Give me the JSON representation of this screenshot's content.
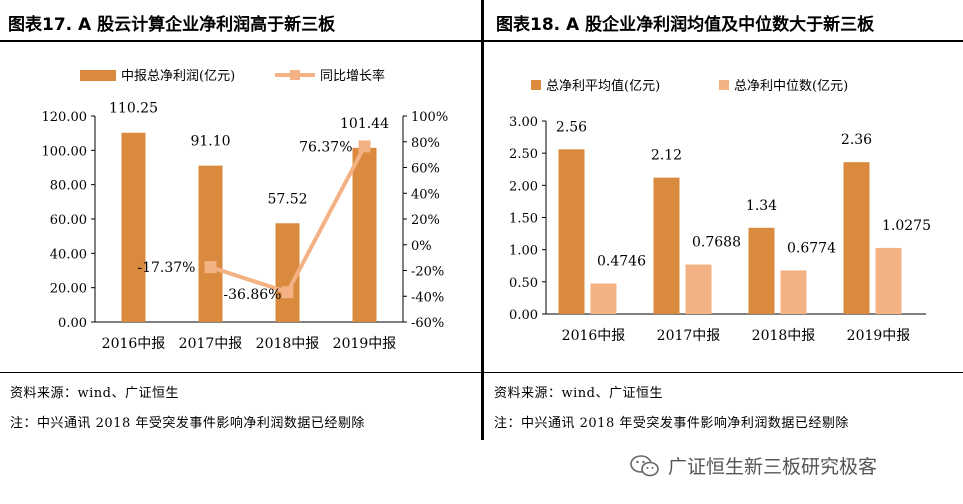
{
  "left_panel": {
    "title": "图表17.  A 股云计算企业净利润高于新三板",
    "source": "资料来源：wind、广证恒生",
    "note": "注：中兴通讯 2018 年受突发事件影响净利润数据已经剔除"
  },
  "right_panel": {
    "title": "图表18.  A 股企业净利润均值及中位数大于新三板",
    "source": "资料来源：wind、广证恒生",
    "note": "注：中兴通讯 2018 年受突发事件影响净利润数据已经剔除"
  },
  "watermark": {
    "text": "广证恒生新三板研究极客"
  },
  "colors": {
    "bar_primary": "#D98A3E",
    "bar_secondary": "#F4B183",
    "line": "#F4B183"
  },
  "chart_data": [
    {
      "type": "bar",
      "title": "A 股云计算企业净利润高于新三板",
      "categories": [
        "2016中报",
        "2017中报",
        "2018中报",
        "2019中报"
      ],
      "series": [
        {
          "name": "中报总净利润(亿元)",
          "type": "bar",
          "axis": "left",
          "values": [
            110.25,
            91.1,
            57.52,
            101.44
          ],
          "labels": [
            "110.25",
            "91.10",
            "57.52",
            "101.44"
          ]
        },
        {
          "name": "同比增长率",
          "type": "line",
          "axis": "right",
          "values": [
            null,
            -17.37,
            -36.86,
            76.37
          ],
          "labels": [
            "",
            "-17.37%",
            "-36.86%",
            "76.37%"
          ]
        }
      ],
      "ylim": [
        0,
        120
      ],
      "y_ticks": [
        "0.00",
        "20.00",
        "40.00",
        "60.00",
        "80.00",
        "100.00",
        "120.00"
      ],
      "y2lim": [
        -60,
        100
      ],
      "y2_ticks": [
        "-60%",
        "-40%",
        "-20%",
        "0%",
        "20%",
        "40%",
        "60%",
        "80%",
        "100%"
      ],
      "legend_position": "top"
    },
    {
      "type": "bar",
      "title": "A 股企业净利润均值及中位数大于新三板",
      "categories": [
        "2016中报",
        "2017中报",
        "2018中报",
        "2019中报"
      ],
      "series": [
        {
          "name": "总净利平均值(亿元)",
          "values": [
            2.56,
            2.12,
            1.34,
            2.36
          ],
          "labels": [
            "2.56",
            "2.12",
            "1.34",
            "2.36"
          ]
        },
        {
          "name": "总净利中位数(亿元)",
          "values": [
            0.4746,
            0.7688,
            0.6774,
            1.0275
          ],
          "labels": [
            "0.4746",
            "0.7688",
            "0.6774",
            "1.0275"
          ]
        }
      ],
      "ylim": [
        0,
        3
      ],
      "y_ticks": [
        "0.00",
        "0.50",
        "1.00",
        "1.50",
        "2.00",
        "2.50",
        "3.00"
      ],
      "legend_position": "top"
    }
  ]
}
